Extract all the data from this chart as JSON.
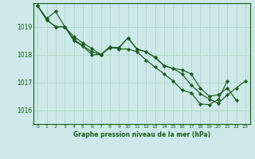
{
  "title": "Graphe pression niveau de la mer (hPa)",
  "background_color": "#cde8e8",
  "grid_color": "#b0d8cc",
  "line_color": "#1a5c1a",
  "marker_color": "#1a5c1a",
  "xlim": [
    -0.5,
    23.5
  ],
  "ylim": [
    1015.5,
    1019.85
  ],
  "yticks": [
    1016,
    1017,
    1018,
    1019
  ],
  "xticks": [
    0,
    1,
    2,
    3,
    4,
    5,
    6,
    7,
    8,
    9,
    10,
    11,
    12,
    13,
    14,
    15,
    16,
    17,
    18,
    19,
    20,
    21,
    22,
    23
  ],
  "series": [
    [
      1019.75,
      1019.3,
      1019.55,
      1019.0,
      1018.65,
      1018.42,
      1018.22,
      1018.0,
      1018.25,
      1018.25,
      1018.6,
      1018.2,
      1018.1,
      1017.9,
      1017.6,
      1017.5,
      1017.45,
      1017.3,
      1016.8,
      1016.5,
      1016.55,
      1016.8,
      1016.35,
      null
    ],
    [
      1019.75,
      1019.25,
      1019.0,
      1019.0,
      1018.55,
      1018.32,
      1018.1,
      1018.0,
      1018.25,
      1018.25,
      1018.6,
      1018.2,
      1018.1,
      1017.9,
      1017.6,
      1017.5,
      1017.3,
      1016.9,
      1016.6,
      1016.4,
      1016.25,
      1016.55,
      1016.8,
      1017.05
    ],
    [
      1019.75,
      1019.25,
      1019.0,
      1019.0,
      1018.5,
      1018.3,
      1018.0,
      1018.0,
      1018.28,
      1018.2,
      1018.2,
      1018.1,
      1017.8,
      1017.55,
      1017.3,
      1017.05,
      1016.72,
      1016.62,
      1016.22,
      1016.2,
      1016.38,
      1017.05,
      null,
      null
    ]
  ]
}
